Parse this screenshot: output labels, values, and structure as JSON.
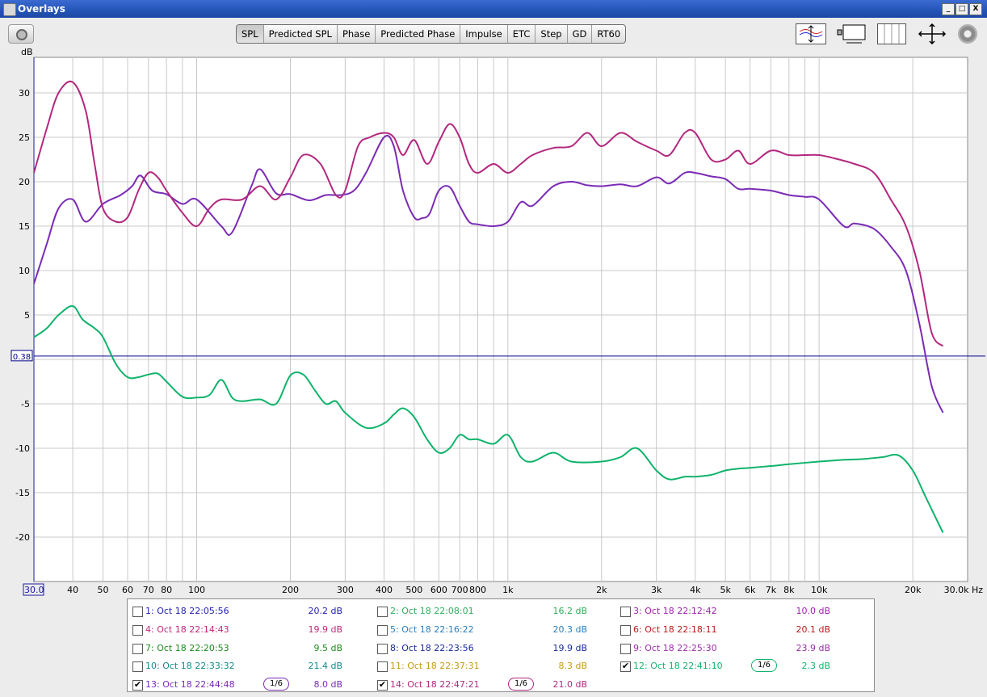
{
  "window": {
    "title": "Overlays",
    "buttons": [
      "_",
      "□",
      "X"
    ]
  },
  "toolbar": {
    "y_unit": "dB",
    "tabs": [
      "SPL",
      "Predicted SPL",
      "Phase",
      "Predicted Phase",
      "Impulse",
      "ETC",
      "Step",
      "GD",
      "RT60"
    ],
    "active_tab": "SPL"
  },
  "chart_data": {
    "type": "line",
    "xscale": "log",
    "xlim": [
      30,
      30000
    ],
    "ylim": [
      -25,
      34
    ],
    "grid": true,
    "yticks": [
      30,
      25,
      20,
      15,
      10,
      5,
      -5,
      -10,
      -15,
      -20
    ],
    "xtick_labels": [
      "30.0",
      "40",
      "50",
      "60",
      "70",
      "80",
      "100",
      "200",
      "300",
      "400",
      "500",
      "600",
      "700",
      "800",
      "1k",
      "2k",
      "3k",
      "4k",
      "5k",
      "6k",
      "7k",
      "8k",
      "10k",
      "20k",
      "30.0k Hz"
    ],
    "xtick_values": [
      30,
      40,
      50,
      60,
      70,
      80,
      100,
      200,
      300,
      400,
      500,
      600,
      700,
      800,
      1000,
      2000,
      3000,
      4000,
      5000,
      6000,
      7000,
      8000,
      10000,
      20000,
      30000
    ],
    "cursor_level": {
      "label": "0.38",
      "value": 0.38,
      "color": "#00008b"
    },
    "series": [
      {
        "name": "13: Oct 18 22:44:48",
        "color": "#7b2bb5",
        "x": [
          30,
          33,
          36,
          40,
          44,
          50,
          57,
          62,
          66,
          72,
          80,
          90,
          100,
          120,
          130,
          150,
          160,
          180,
          200,
          230,
          260,
          290,
          320,
          350,
          400,
          430,
          460,
          500,
          530,
          560,
          600,
          650,
          700,
          750,
          800,
          900,
          1000,
          1100,
          1200,
          1400,
          1600,
          1800,
          2000,
          2300,
          2600,
          3000,
          3300,
          3700,
          4000,
          4500,
          5000,
          5500,
          6000,
          7000,
          8000,
          9000,
          10000,
          12000,
          13000,
          15000,
          17000,
          19000,
          21000,
          23000,
          25000
        ],
        "y": [
          8.5,
          13,
          17,
          18,
          15.5,
          17.5,
          18.5,
          19.5,
          20.7,
          19,
          18.6,
          17.5,
          18,
          15,
          14.3,
          19.5,
          21.4,
          18.7,
          18.6,
          17.9,
          18.5,
          18.5,
          19,
          21,
          25,
          24,
          19,
          16,
          15.9,
          16.4,
          19,
          19.4,
          17.3,
          15.5,
          15.2,
          15,
          15.5,
          17.7,
          17.3,
          19.5,
          20,
          19.6,
          19.5,
          19.7,
          19.5,
          20.5,
          19.8,
          21,
          21,
          20.6,
          20.3,
          19.2,
          19.2,
          19,
          18.5,
          18.3,
          18,
          15,
          15.3,
          14.7,
          12.7,
          10,
          4,
          -3,
          -6
        ]
      },
      {
        "name": "14: Oct 18 22:47:21",
        "color": "#b2287e",
        "x": [
          30,
          33,
          36,
          40,
          44,
          47,
          50,
          55,
          60,
          65,
          70,
          75,
          80,
          90,
          100,
          110,
          120,
          140,
          160,
          180,
          200,
          220,
          250,
          280,
          300,
          330,
          360,
          400,
          430,
          460,
          500,
          550,
          600,
          650,
          700,
          750,
          800,
          900,
          1000,
          1100,
          1200,
          1400,
          1600,
          1800,
          2000,
          2300,
          2600,
          3000,
          3300,
          3700,
          4000,
          4500,
          5000,
          5500,
          6000,
          7000,
          8000,
          9000,
          10000,
          11000,
          13000,
          15000,
          17000,
          19000,
          21000,
          23000,
          25000
        ],
        "y": [
          21,
          26,
          30,
          31.2,
          28,
          22,
          17,
          15.5,
          16,
          19,
          21,
          20.5,
          19,
          16.5,
          15,
          17,
          18,
          18,
          19.5,
          18,
          20.5,
          23,
          22,
          18.5,
          19,
          24,
          25,
          25.5,
          25,
          23,
          24.7,
          22,
          24.5,
          26.5,
          25,
          22,
          21,
          22,
          21,
          22,
          23,
          23.8,
          24,
          25.5,
          24,
          25.5,
          24.5,
          23.5,
          23,
          25.5,
          25.5,
          22.5,
          22.5,
          23.5,
          22,
          23.5,
          23,
          23,
          23,
          22.7,
          22,
          21,
          18,
          15,
          10,
          3,
          1.5
        ]
      },
      {
        "name": "12: Oct 18 22:41:10",
        "color": "#0fb36b",
        "x": [
          30,
          33,
          36,
          40,
          43,
          47,
          50,
          55,
          60,
          65,
          70,
          75,
          80,
          90,
          100,
          110,
          120,
          130,
          140,
          160,
          180,
          200,
          220,
          240,
          260,
          280,
          300,
          350,
          400,
          430,
          460,
          500,
          550,
          600,
          650,
          700,
          750,
          800,
          900,
          1000,
          1100,
          1200,
          1400,
          1600,
          2000,
          2300,
          2600,
          3000,
          3300,
          3700,
          4000,
          4500,
          5000,
          5500,
          6000,
          7000,
          8000,
          10000,
          12000,
          14000,
          16000,
          18000,
          20000,
          22000,
          25000
        ],
        "y": [
          2.5,
          3.5,
          5,
          6,
          4.5,
          3.5,
          2.5,
          -0.5,
          -2,
          -2,
          -1.7,
          -1.6,
          -2.5,
          -4.2,
          -4.3,
          -4,
          -2.3,
          -4.3,
          -4.7,
          -4.5,
          -5,
          -1.8,
          -1.7,
          -3.5,
          -5,
          -4.7,
          -6,
          -7.7,
          -7.2,
          -6.2,
          -5.5,
          -6.5,
          -9,
          -10.5,
          -10,
          -8.5,
          -9,
          -9,
          -9.5,
          -8.5,
          -11,
          -11.5,
          -10.5,
          -11.5,
          -11.5,
          -11,
          -10,
          -12.5,
          -13.5,
          -13.2,
          -13.2,
          -13,
          -12.5,
          -12.3,
          -12.2,
          -12,
          -11.8,
          -11.5,
          -11.3,
          -11.2,
          -11,
          -10.8,
          -12.5,
          -15.5,
          -19.5
        ]
      }
    ]
  },
  "legend": {
    "items": [
      {
        "label": "1: Oct 18 22:05:56",
        "value": "20.2 dB",
        "color": "#1f1fb3",
        "checked": false
      },
      {
        "label": "2: Oct 18 22:08:01",
        "value": "16.2 dB",
        "color": "#2fae5b",
        "checked": false
      },
      {
        "label": "3: Oct 18 22:12:42",
        "value": "10.0 dB",
        "color": "#a020b0",
        "checked": false
      },
      {
        "label": "4: Oct 18 22:14:43",
        "value": "19.9 dB",
        "color": "#c0277a",
        "checked": false
      },
      {
        "label": "5: Oct 18 22:16:22",
        "value": "20.3 dB",
        "color": "#2a7fc0",
        "checked": false
      },
      {
        "label": "6: Oct 18 22:18:11",
        "value": "20.1 dB",
        "color": "#b81c1c",
        "checked": false
      },
      {
        "label": "7: Oct 18 22:20:53",
        "value": "9.5 dB",
        "color": "#1e8a1e",
        "checked": false
      },
      {
        "label": "8: Oct 18 22:23:56",
        "value": "19.9 dB",
        "color": "#1a2a9a",
        "checked": false
      },
      {
        "label": "9: Oct 18 22:25:30",
        "value": "23.9 dB",
        "color": "#9b2fa8",
        "checked": false
      },
      {
        "label": "10: Oct 18 22:33:32",
        "value": "21.4 dB",
        "color": "#108a8a",
        "checked": false
      },
      {
        "label": "11: Oct 18 22:37:31",
        "value": "8.3 dB",
        "color": "#c49a10",
        "checked": false
      },
      {
        "label": "12: Oct 18 22:41:10",
        "value": "2.3 dB",
        "color": "#0fb36b",
        "checked": true,
        "smoothing": "1/6"
      },
      {
        "label": "13: Oct 18 22:44:48",
        "value": "8.0 dB",
        "color": "#7b2bb5",
        "checked": true,
        "smoothing": "1/6"
      },
      {
        "label": "14: Oct 18 22:47:21",
        "value": "21.0 dB",
        "color": "#b2287e",
        "checked": true,
        "smoothing": "1/6"
      }
    ]
  }
}
